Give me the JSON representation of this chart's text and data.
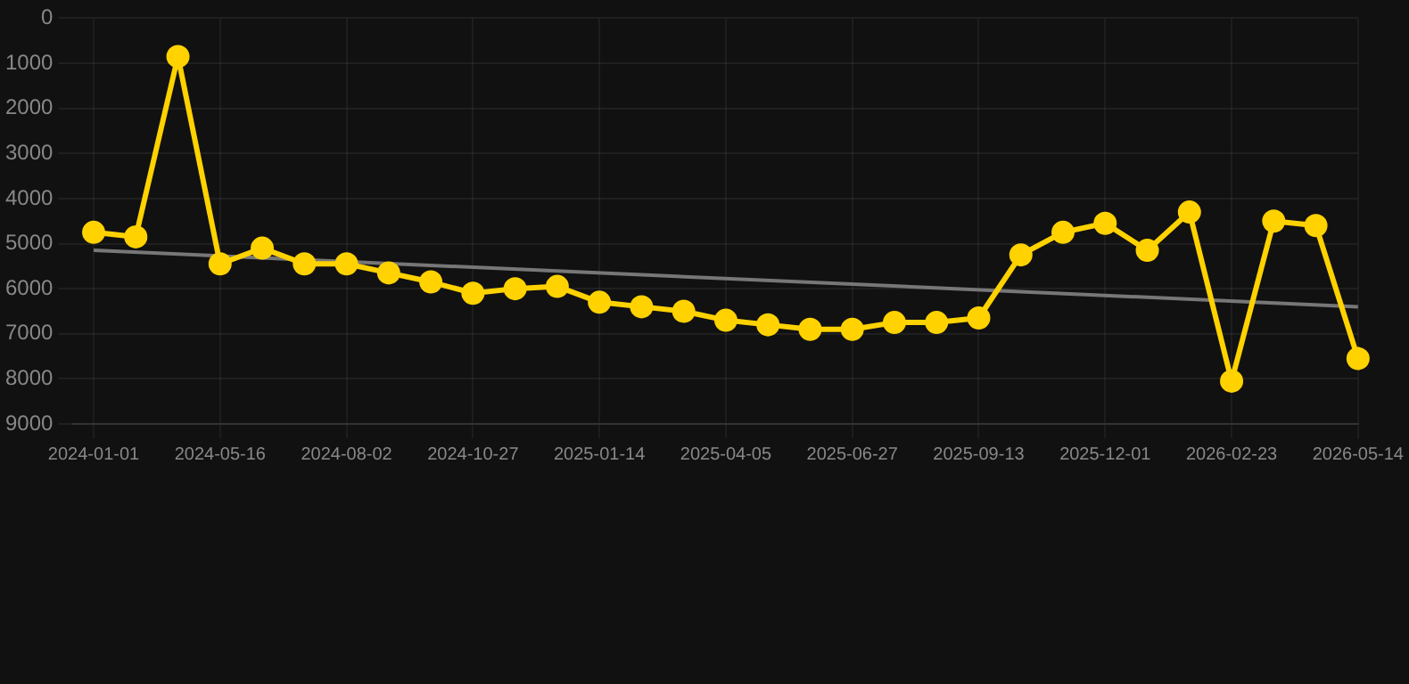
{
  "chart_data": {
    "type": "line",
    "categories": [
      "2024-01-01",
      null,
      null,
      "2024-05-16",
      null,
      null,
      "2024-08-02",
      null,
      null,
      "2024-10-27",
      null,
      null,
      "2025-01-14",
      null,
      null,
      "2025-04-05",
      null,
      null,
      "2025-06-27",
      null,
      null,
      "2025-09-13",
      null,
      null,
      "2025-12-01",
      null,
      null,
      "2026-02-23",
      null,
      null,
      "2026-05-14"
    ],
    "series": [
      {
        "color": "#ffd200",
        "marker": "circle",
        "values": [
          4750,
          4850,
          850,
          5450,
          5100,
          5450,
          5450,
          5650,
          5850,
          6100,
          6000,
          5950,
          6300,
          6400,
          6500,
          6700,
          6800,
          6900,
          6900,
          6750,
          6750,
          6650,
          5250,
          4750,
          4550,
          5150,
          4300,
          8050,
          4500,
          4600,
          7550
        ]
      },
      {
        "type": "line",
        "color": "#777777",
        "marker": "none",
        "values": [
          5150,
          null,
          null,
          null,
          null,
          null,
          null,
          null,
          null,
          null,
          null,
          null,
          null,
          null,
          null,
          null,
          null,
          null,
          null,
          null,
          null,
          null,
          null,
          null,
          null,
          null,
          null,
          null,
          null,
          null,
          6400
        ]
      }
    ],
    "ylim": [
      9000,
      0
    ],
    "yticks": [
      0,
      1000,
      2000,
      3000,
      4000,
      5000,
      6000,
      7000,
      8000,
      9000
    ],
    "grid": true,
    "legend": false
  }
}
